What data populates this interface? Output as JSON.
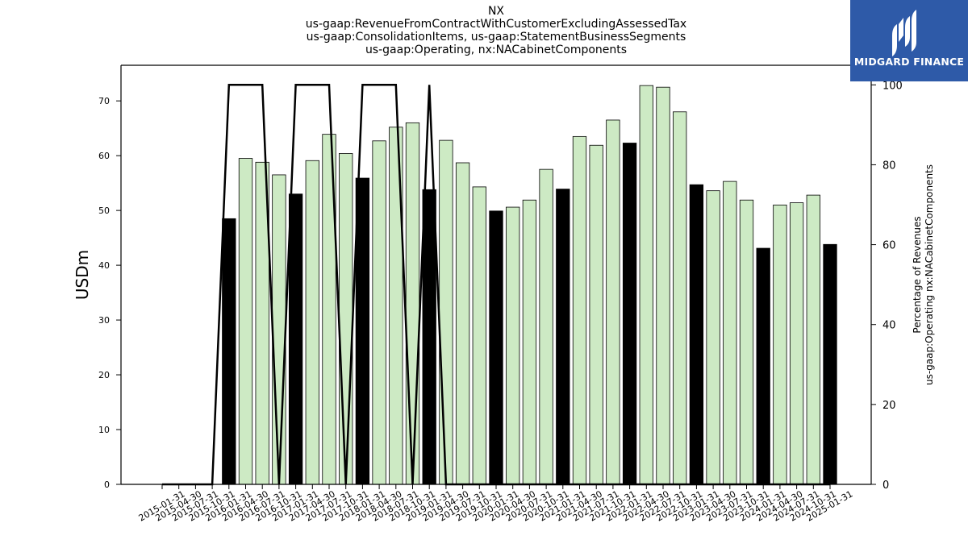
{
  "title": {
    "lines": [
      "NX",
      "us-gaap:RevenueFromContractWithCustomerExcludingAssessedTax",
      "us-gaap:ConsolidationItems, us-gaap:StatementBusinessSegments",
      "us-gaap:Operating, nx:NACabinetComponents"
    ]
  },
  "logo": {
    "text": "MIDGARD FINANCE",
    "icon": "midgard-logo-icon",
    "background": "#2e5aa8"
  },
  "colors": {
    "bar_fill": "#cdeac4",
    "bar_highlight": "#000000",
    "bar_edge": "#000000",
    "line": "#000000"
  },
  "chart_data": {
    "type": "bar",
    "categories": [
      "2015-01-31",
      "2015-04-30",
      "2015-07-31",
      "2015-10-31",
      "2016-01-31",
      "2016-04-30",
      "2016-07-31",
      "2016-10-31",
      "2017-01-31",
      "2017-04-30",
      "2017-07-31",
      "2017-10-31",
      "2018-01-31",
      "2018-04-30",
      "2018-07-31",
      "2018-10-31",
      "2019-01-31",
      "2019-04-30",
      "2019-07-31",
      "2019-10-31",
      "2020-01-31",
      "2020-04-30",
      "2020-07-31",
      "2020-10-31",
      "2021-01-31",
      "2021-04-30",
      "2021-07-31",
      "2021-10-31",
      "2022-01-31",
      "2022-04-30",
      "2022-07-31",
      "2022-10-31",
      "2023-01-31",
      "2023-04-30",
      "2023-07-31",
      "2023-10-31",
      "2024-01-31",
      "2024-04-30",
      "2024-07-31",
      "2024-10-31",
      "2025-01-31"
    ],
    "series": [
      {
        "axis": "left",
        "values": [
          null,
          null,
          null,
          null,
          48.5,
          59.5,
          58.8,
          56.5,
          53.0,
          59.1,
          63.9,
          60.4,
          55.9,
          62.7,
          65.2,
          66.0,
          53.8,
          62.8,
          58.7,
          54.3,
          49.9,
          50.6,
          51.9,
          57.5,
          53.9,
          63.5,
          61.9,
          66.5,
          62.3,
          72.8,
          72.5,
          68.0,
          54.7,
          53.6,
          55.3,
          51.9,
          43.1,
          51.0,
          51.4,
          52.8,
          43.8
        ],
        "highlighted": [
          false,
          false,
          false,
          false,
          true,
          false,
          false,
          false,
          true,
          false,
          false,
          false,
          true,
          false,
          false,
          false,
          true,
          false,
          false,
          false,
          true,
          false,
          false,
          false,
          true,
          false,
          false,
          false,
          true,
          false,
          false,
          false,
          true,
          false,
          false,
          false,
          true,
          false,
          false,
          false,
          true
        ]
      },
      {
        "axis": "right",
        "type": "line",
        "values": [
          0,
          0,
          0,
          0,
          100,
          100,
          100,
          0,
          100,
          100,
          100,
          0,
          100,
          100,
          100,
          0,
          100,
          0,
          0,
          0,
          0,
          0,
          0,
          0,
          0,
          0,
          0,
          0,
          0,
          0,
          0,
          0,
          0,
          0,
          0,
          0,
          0,
          0,
          0,
          0,
          0
        ]
      }
    ],
    "ylabel": "USDm",
    "ylabel_right": [
      "Percentage of Revenues",
      "us-gaap:Operating nx:NACabinetComponents"
    ],
    "ylim": [
      0,
      76.5
    ],
    "ylim_right": [
      0,
      104.9
    ],
    "yticks": [
      0,
      10,
      20,
      30,
      40,
      50,
      60,
      70
    ],
    "yticks_right": [
      0,
      20,
      40,
      60,
      80,
      100
    ],
    "grid": false
  }
}
